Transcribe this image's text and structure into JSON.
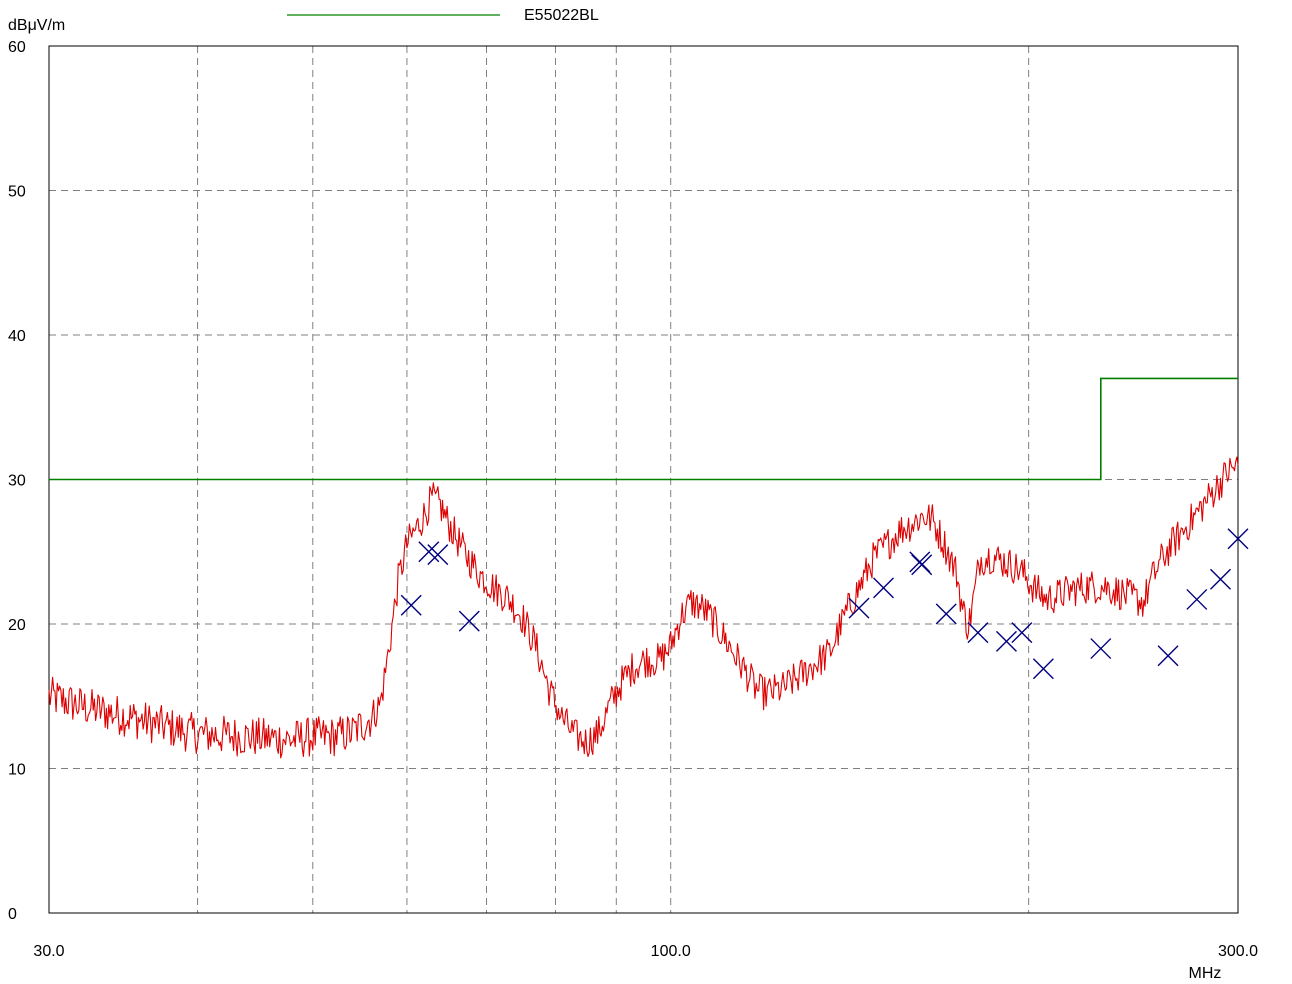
{
  "chart_data": {
    "type": "line",
    "ylabel": "dBμV/m",
    "xlabel": "MHz",
    "x_scale": "log",
    "xlim": [
      30,
      300
    ],
    "ylim": [
      0,
      60
    ],
    "grid": true,
    "x_ticks": [
      {
        "value": 30,
        "label": "30.0"
      },
      {
        "value": 100,
        "label": "100.0"
      },
      {
        "value": 300,
        "label": "300.0"
      }
    ],
    "x_gridlines": [
      40,
      50,
      60,
      70,
      80,
      90,
      100,
      200
    ],
    "y_ticks": [
      {
        "value": 0,
        "label": "0"
      },
      {
        "value": 10,
        "label": "10"
      },
      {
        "value": 20,
        "label": "20"
      },
      {
        "value": 30,
        "label": "30"
      },
      {
        "value": 40,
        "label": "40"
      },
      {
        "value": 50,
        "label": "50"
      },
      {
        "value": 60,
        "label": "60"
      }
    ],
    "legend": {
      "position": "top-center",
      "entries": [
        {
          "name": "E55022BL",
          "color": "#008000"
        }
      ]
    },
    "series": [
      {
        "name": "E55022BL",
        "kind": "limit-line",
        "color": "#008000",
        "points": [
          [
            30,
            30
          ],
          [
            230,
            30
          ],
          [
            230,
            37
          ],
          [
            300,
            37
          ]
        ]
      },
      {
        "kind": "measurement-trace",
        "color": "#dd0000",
        "points": [
          [
            30,
            15
          ],
          [
            32,
            14.3
          ],
          [
            34,
            13.8
          ],
          [
            36,
            13.3
          ],
          [
            38,
            12.8
          ],
          [
            40,
            12.4
          ],
          [
            42,
            12.3
          ],
          [
            44,
            12.2
          ],
          [
            46,
            12.1
          ],
          [
            48,
            12.0
          ],
          [
            50,
            12.2
          ],
          [
            52,
            12.2
          ],
          [
            54,
            12.5
          ],
          [
            56,
            13.5
          ],
          [
            57,
            14.5
          ],
          [
            58,
            18.5
          ],
          [
            59,
            23
          ],
          [
            60,
            25.5
          ],
          [
            61,
            26.5
          ],
          [
            62,
            27.5
          ],
          [
            63,
            28.7
          ],
          [
            64,
            28.2
          ],
          [
            65,
            27
          ],
          [
            67,
            25
          ],
          [
            69,
            23.5
          ],
          [
            71,
            22.5
          ],
          [
            73,
            21.8
          ],
          [
            75,
            20.5
          ],
          [
            77,
            18.5
          ],
          [
            79,
            15.5
          ],
          [
            81,
            13.5
          ],
          [
            83,
            12.3
          ],
          [
            85,
            11.8
          ],
          [
            87,
            12.5
          ],
          [
            89,
            14.5
          ],
          [
            91,
            16
          ],
          [
            93,
            17
          ],
          [
            95,
            17.5
          ],
          [
            98,
            17.5
          ],
          [
            100,
            18.5
          ],
          [
            102,
            20.5
          ],
          [
            104,
            21.5
          ],
          [
            106,
            21.2
          ],
          [
            108,
            20.5
          ],
          [
            110,
            19.5
          ],
          [
            113,
            18
          ],
          [
            116,
            16.5
          ],
          [
            118,
            15.5
          ],
          [
            120,
            15.2
          ],
          [
            124,
            15.5
          ],
          [
            128,
            16.3
          ],
          [
            132,
            17.2
          ],
          [
            136,
            18
          ],
          [
            140,
            20.5
          ],
          [
            144,
            22.5
          ],
          [
            148,
            24.5
          ],
          [
            152,
            25.5
          ],
          [
            156,
            26.5
          ],
          [
            160,
            27
          ],
          [
            163,
            27.5
          ],
          [
            166,
            27.2
          ],
          [
            170,
            25.5
          ],
          [
            174,
            23.5
          ],
          [
            176,
            21
          ],
          [
            178,
            19.8
          ],
          [
            180,
            22
          ],
          [
            182,
            24.5
          ],
          [
            186,
            24.7
          ],
          [
            192,
            24.2
          ],
          [
            197,
            23.7
          ],
          [
            202,
            22.5
          ],
          [
            207,
            21.7
          ],
          [
            212,
            22
          ],
          [
            218,
            22.4
          ],
          [
            225,
            22.6
          ],
          [
            232,
            22.6
          ],
          [
            238,
            22.2
          ],
          [
            245,
            21.8
          ],
          [
            250,
            21.5
          ],
          [
            253,
            22.8
          ],
          [
            258,
            24.3
          ],
          [
            264,
            25.5
          ],
          [
            270,
            26.5
          ],
          [
            276,
            27.5
          ],
          [
            282,
            28.5
          ],
          [
            288,
            29.5
          ],
          [
            294,
            30.5
          ],
          [
            300,
            31
          ]
        ]
      },
      {
        "kind": "quasi-peak-markers",
        "color": "#000080",
        "points": [
          [
            60.5,
            21.3
          ],
          [
            62.6,
            25
          ],
          [
            63.7,
            24.8
          ],
          [
            67.7,
            20.2
          ],
          [
            144,
            21.1
          ],
          [
            151,
            22.5
          ],
          [
            162,
            24.3
          ],
          [
            162.6,
            24.1
          ],
          [
            170.5,
            20.7
          ],
          [
            181.3,
            19.4
          ],
          [
            191.6,
            18.8
          ],
          [
            197.4,
            19.4
          ],
          [
            205.8,
            16.9
          ],
          [
            230,
            18.3
          ],
          [
            262,
            17.8
          ],
          [
            277,
            21.7
          ],
          [
            290,
            23.1
          ],
          [
            300,
            25.9
          ]
        ]
      }
    ]
  }
}
